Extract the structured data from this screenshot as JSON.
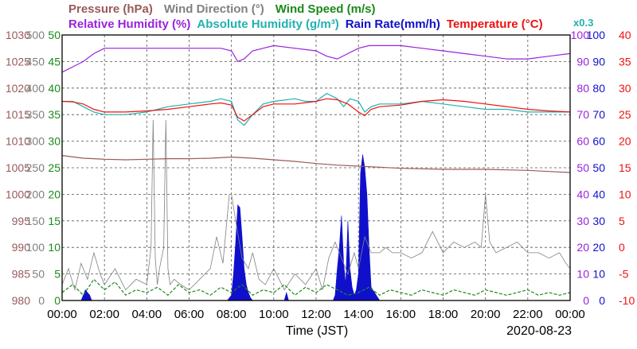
{
  "chart_data": {
    "type": "line",
    "legend_row1": [
      {
        "name": "Pressure (hPa)",
        "color": "#9a5a5a"
      },
      {
        "name": "Wind Direction (°)",
        "color": "#808080"
      },
      {
        "name": "Wind Speed (m/s)",
        "color": "#1a8a1a"
      }
    ],
    "legend_row2": [
      {
        "name": "Relative Humidity (%)",
        "color": "#9a22dd"
      },
      {
        "name": "Absolute Humidity (g/m³)",
        "color": "#22b0b0"
      },
      {
        "name": "Rain Rate(mm/h)",
        "color": "#1010cc"
      },
      {
        "name": "Temperature (°C)",
        "color": "#ee1111"
      }
    ],
    "scale_note": {
      "text": "x0.3",
      "color": "#22b0b0"
    },
    "xlabel": "Time (JST)",
    "date": "2020-08-23",
    "x_ticks": [
      "00:00",
      "02:00",
      "04:00",
      "06:00",
      "08:00",
      "10:00",
      "12:00",
      "14:00",
      "16:00",
      "18:00",
      "20:00",
      "22:00",
      "00:00"
    ],
    "x_range_hours": [
      0,
      24
    ],
    "axes": [
      {
        "name": "Pressure (hPa)",
        "side": "left",
        "color": "#9a5a5a",
        "ticks": [
          "1030",
          "1025",
          "1020",
          "1015",
          "1010",
          "1005",
          "1000",
          "995",
          "990",
          "985",
          "980"
        ],
        "range": [
          980,
          1030
        ]
      },
      {
        "name": "Wind Direction (°)",
        "side": "left",
        "color": "#808080",
        "ticks": [
          "500",
          "450",
          "400",
          "350",
          "300",
          "250",
          "200",
          "150",
          "100",
          "50",
          "0"
        ],
        "range": [
          0,
          500
        ]
      },
      {
        "name": "Wind Speed (m/s)",
        "side": "left",
        "color": "#1a8a1a",
        "ticks": [
          "50",
          "45",
          "40",
          "35",
          "30",
          "25",
          "20",
          "15",
          "10",
          "5",
          "0"
        ],
        "range": [
          0,
          50
        ]
      },
      {
        "name": "Relative Humidity (%)",
        "side": "right",
        "color": "#9a22dd",
        "ticks": [
          "100",
          "90",
          "80",
          "70",
          "60",
          "50",
          "40",
          "30",
          "20",
          "10",
          "0"
        ],
        "range": [
          0,
          100
        ]
      },
      {
        "name": "Rain Rate(mm/h)",
        "side": "right",
        "color": "#1010cc",
        "ticks": [
          "100",
          "90",
          "80",
          "70",
          "60",
          "50",
          "40",
          "30",
          "20",
          "10",
          "0"
        ],
        "range": [
          0,
          100
        ]
      },
      {
        "name": "Temperature (°C)",
        "side": "right",
        "color": "#ee1111",
        "ticks": [
          "40",
          "35",
          "30",
          "25",
          "20",
          "15",
          "10",
          "5",
          "0",
          "-5",
          "-10"
        ],
        "range": [
          -10,
          40
        ]
      }
    ],
    "grid": true,
    "series": [
      {
        "name": "Relative Humidity (%)",
        "axis": "Relative Humidity (%)",
        "color": "#9a22dd",
        "x": [
          0,
          0.5,
          1,
          1.5,
          2,
          3,
          4,
          5,
          6,
          7,
          7.5,
          8,
          8.3,
          8.6,
          9,
          9.5,
          10,
          11,
          12,
          12.5,
          13,
          13.5,
          14,
          14.5,
          15,
          16,
          17,
          18,
          19,
          20,
          21,
          22,
          23,
          24
        ],
        "y": [
          86,
          88,
          90,
          93,
          95,
          95,
          95,
          95,
          95,
          95,
          95,
          94,
          90,
          91,
          94,
          95,
          96,
          95,
          94,
          92,
          91,
          93,
          95,
          96,
          96,
          96,
          95,
          94,
          93,
          92,
          91,
          91,
          92,
          93
        ]
      },
      {
        "name": "Absolute Humidity (g/m³)",
        "axis": "Relative Humidity (%)",
        "color": "#22b0b0",
        "x": [
          0,
          0.5,
          1,
          1.5,
          2,
          3,
          4,
          5,
          6,
          7,
          7.5,
          8,
          8.3,
          8.6,
          9,
          9.5,
          10,
          11,
          11.5,
          12,
          12.5,
          13,
          13.3,
          13.6,
          14,
          14.3,
          14.6,
          15,
          16,
          17,
          18,
          19,
          20,
          21,
          22,
          23,
          24
        ],
        "y": [
          75,
          75,
          73,
          71,
          70,
          70,
          71,
          73,
          74,
          75,
          76,
          75,
          68,
          66,
          70,
          74,
          75,
          76,
          75,
          75,
          78,
          76,
          73,
          76,
          75,
          71,
          73,
          74,
          74,
          75,
          74,
          73,
          72,
          72,
          71,
          71,
          71
        ]
      },
      {
        "name": "Temperature (°C)",
        "axis": "Temperature (°C)",
        "color": "#ee1111",
        "x": [
          0,
          0.5,
          1,
          1.5,
          2,
          3,
          4,
          5,
          6,
          7,
          7.5,
          8,
          8.3,
          8.6,
          9,
          9.5,
          10,
          11,
          12,
          12.5,
          13,
          13.5,
          14,
          14.3,
          14.6,
          15,
          16,
          17,
          18,
          19,
          20,
          21,
          22,
          23,
          24
        ],
        "y": [
          27.5,
          27.4,
          27,
          26,
          25.5,
          25.5,
          25.7,
          26,
          26.5,
          27,
          27.2,
          26.8,
          24.5,
          23.8,
          25,
          26.5,
          27,
          27,
          27.5,
          28,
          27.8,
          27,
          25.5,
          24.8,
          26,
          26.5,
          26.8,
          27.5,
          27.8,
          27.5,
          27,
          26.5,
          26,
          25.7,
          25.5
        ]
      },
      {
        "name": "Pressure (hPa)",
        "axis": "Pressure (hPa)",
        "color": "#9a5a5a",
        "x": [
          0,
          1,
          2,
          3,
          4,
          5,
          6,
          7,
          8,
          9,
          10,
          11,
          12,
          13,
          14,
          15,
          16,
          17,
          18,
          19,
          20,
          21,
          22,
          23,
          24
        ],
        "y": [
          1007.3,
          1006.8,
          1006.6,
          1006.5,
          1006.6,
          1006.7,
          1006.7,
          1006.8,
          1007.0,
          1006.8,
          1006.5,
          1006.2,
          1005.8,
          1005.5,
          1005.3,
          1005.1,
          1004.9,
          1004.8,
          1004.7,
          1004.7,
          1004.7,
          1004.6,
          1004.5,
          1004.3,
          1004.1
        ]
      },
      {
        "name": "Wind Direction (°)",
        "axis": "Wind Direction (°)",
        "color": "#808080",
        "x": [
          0,
          0.3,
          0.6,
          0.9,
          1.2,
          1.5,
          1.8,
          2,
          2.5,
          3,
          3.5,
          4,
          4.2,
          4.3,
          4.4,
          4.5,
          4.6,
          4.8,
          4.9,
          5,
          5.1,
          5.3,
          5.6,
          6,
          6.5,
          7,
          7.3,
          7.6,
          7.9,
          8,
          8.2,
          8.5,
          8.8,
          9,
          9.3,
          9.6,
          10,
          10.5,
          11,
          11.5,
          12,
          12.3,
          12.6,
          12.9,
          13.2,
          13.5,
          13.8,
          14,
          14.3,
          14.6,
          15,
          15.3,
          15.6,
          16,
          16.5,
          17,
          17.5,
          18,
          18.5,
          19,
          19.5,
          19.8,
          20,
          20.2,
          20.5,
          21,
          21.5,
          22,
          22.5,
          23,
          23.5,
          23.8,
          24
        ],
        "y": [
          30,
          60,
          20,
          70,
          40,
          90,
          50,
          30,
          60,
          20,
          40,
          30,
          100,
          340,
          80,
          30,
          60,
          100,
          340,
          60,
          30,
          40,
          30,
          20,
          40,
          60,
          120,
          70,
          200,
          200,
          150,
          80,
          60,
          90,
          40,
          30,
          60,
          20,
          50,
          30,
          60,
          20,
          80,
          110,
          80,
          50,
          90,
          60,
          120,
          90,
          90,
          100,
          90,
          90,
          80,
          90,
          130,
          90,
          110,
          100,
          110,
          100,
          200,
          110,
          90,
          100,
          110,
          90,
          90,
          80,
          90,
          70,
          60
        ]
      },
      {
        "name": "Wind Speed (m/s)",
        "axis": "Wind Speed (m/s)",
        "color": "#1a8a1a",
        "x": [
          0,
          0.5,
          1,
          1.5,
          2,
          2.5,
          3,
          3.5,
          4,
          4.5,
          5,
          5.5,
          6,
          6.5,
          7,
          7.5,
          8,
          8.5,
          9,
          9.5,
          10,
          10.5,
          11,
          11.5,
          12,
          12.5,
          13,
          13.5,
          14,
          14.5,
          15,
          15.5,
          16,
          16.5,
          17,
          17.5,
          18,
          18.5,
          19,
          19.5,
          20,
          20.5,
          21,
          21.5,
          22,
          22.5,
          23,
          23.5,
          24
        ],
        "y": [
          1.5,
          3,
          1,
          4,
          2,
          3.5,
          1,
          2,
          1.5,
          2.5,
          1,
          3,
          1.5,
          2,
          1,
          2.5,
          1.5,
          3,
          1,
          2,
          1.5,
          3,
          1,
          2.5,
          1.5,
          3,
          2,
          1,
          1.5,
          2.5,
          1,
          2,
          1.5,
          1,
          2,
          1.5,
          1,
          2,
          1.5,
          1,
          2,
          1.5,
          1,
          1.5,
          2,
          1,
          1.5,
          1,
          1.5
        ]
      },
      {
        "name": "Rain Rate(mm/h)",
        "axis": "Rain Rate(mm/h)",
        "color": "#1010cc",
        "fill": true,
        "x": [
          0,
          0.9,
          1,
          1.1,
          1.2,
          1.3,
          1.4,
          2,
          7.8,
          8.0,
          8.1,
          8.2,
          8.3,
          8.4,
          8.5,
          8.6,
          8.7,
          8.8,
          8.9,
          9.0,
          9.1,
          10.5,
          10.6,
          10.7,
          12.8,
          12.9,
          13.0,
          13.1,
          13.2,
          13.3,
          13.4,
          13.5,
          13.6,
          13.7,
          13.8,
          13.9,
          14.0,
          14.1,
          14.2,
          14.3,
          14.4,
          14.5,
          14.6,
          15,
          24
        ],
        "y": [
          0,
          0,
          2,
          4,
          3,
          2,
          0,
          0,
          0,
          2,
          10,
          22,
          36,
          35,
          24,
          12,
          6,
          3,
          1,
          0,
          0,
          0,
          3,
          0,
          0,
          2,
          12,
          20,
          32,
          14,
          6,
          30,
          12,
          5,
          2,
          4,
          10,
          48,
          55,
          50,
          40,
          20,
          5,
          0,
          0
        ]
      }
    ]
  }
}
